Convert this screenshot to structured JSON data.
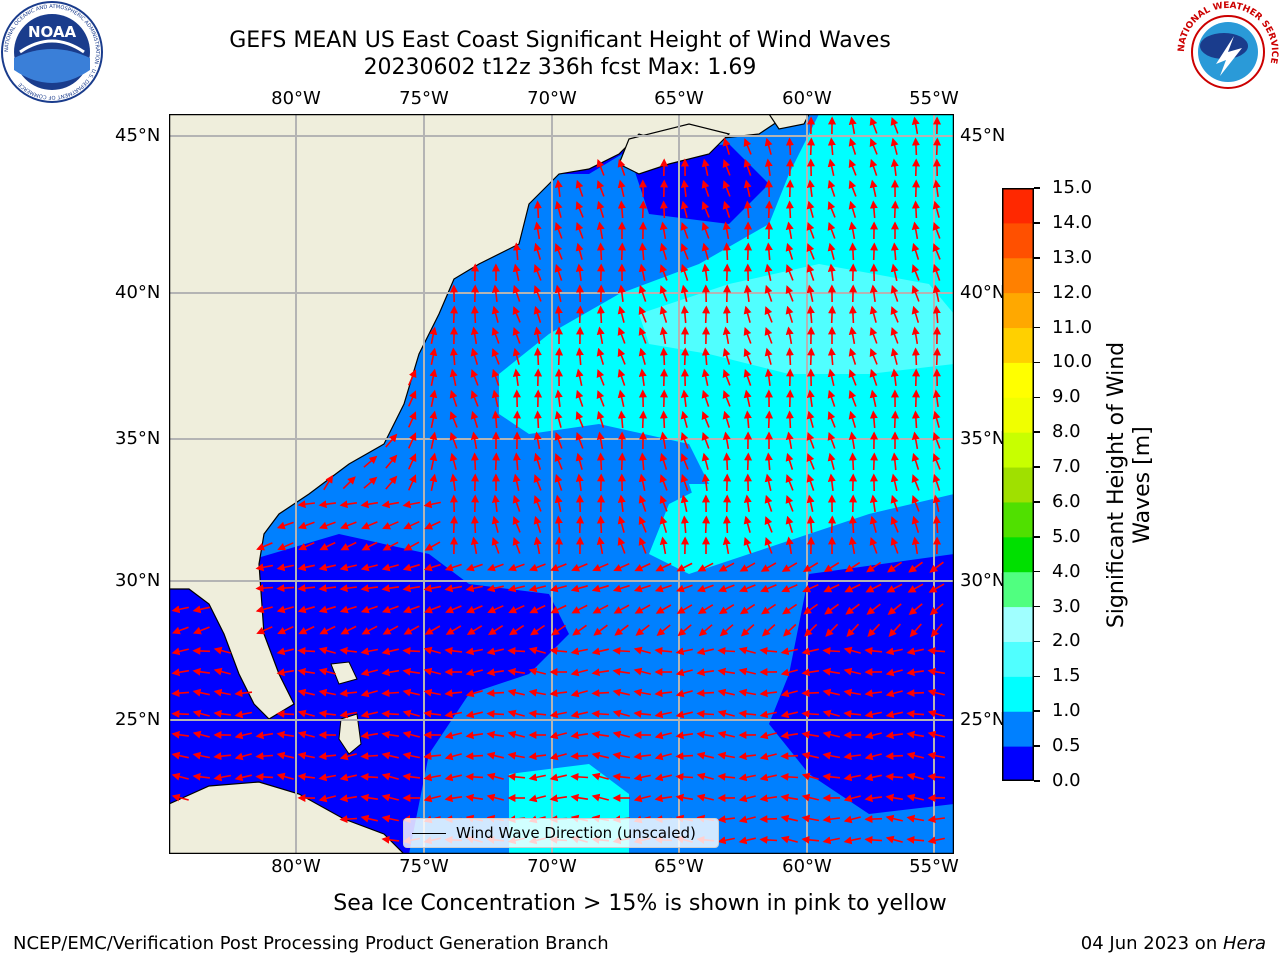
{
  "title": {
    "line1": "GEFS MEAN US East Coast Significant Height of Wind Waves",
    "line2": "20230602 t12z 336h fcst   Max: 1.69"
  },
  "map": {
    "lon_labels": [
      "80°W",
      "75°W",
      "70°W",
      "65°W",
      "60°W",
      "55°W"
    ],
    "lat_labels": [
      "45°N",
      "40°N",
      "35°N",
      "30°N",
      "25°N"
    ],
    "legend_label": "Wind Wave Direction (unscaled)",
    "colors": {
      "land": "#efeedc",
      "level_0_0_5": "#0000ff",
      "level_0_5_1_0": "#0080ff",
      "level_1_0_1_5": "#00ffff",
      "level_1_5_2_0": "#50ffff",
      "arrows": "#ff0000",
      "gridlines": "#b4b4b4"
    }
  },
  "colorbar": {
    "label": "Significant Height of Wind Waves [m]",
    "ticks": [
      "0.0",
      "0.5",
      "1.0",
      "1.5",
      "2.0",
      "3.0",
      "4.0",
      "5.0",
      "6.0",
      "7.0",
      "8.0",
      "9.0",
      "10.0",
      "11.0",
      "12.0",
      "13.0",
      "14.0",
      "15.0"
    ],
    "colors": [
      "#0000ff",
      "#0080ff",
      "#00ffff",
      "#50ffff",
      "#a0ffff",
      "#50ff80",
      "#00e000",
      "#50e000",
      "#a0e000",
      "#c8ff00",
      "#f0ff00",
      "#ffff00",
      "#ffd000",
      "#ffa800",
      "#ff8000",
      "#ff5000",
      "#ff2800",
      "#ff0000"
    ]
  },
  "subtitle": "Sea Ice Concentration > 15% is shown in pink to yellow",
  "footer": {
    "left": "NCEP/EMC/Verification Post Processing Product Generation Branch",
    "right_prefix": "04 Jun 2023 on ",
    "right_machine": "Hera"
  },
  "logos": {
    "noaa_text": "NOAA",
    "noaa_ring": "NATIONAL OCEANIC AND ATMOSPHERIC ADMINISTRATION · U.S. DEPARTMENT OF COMMERCE",
    "nws_ring": "NATIONAL WEATHER SERVICE"
  }
}
